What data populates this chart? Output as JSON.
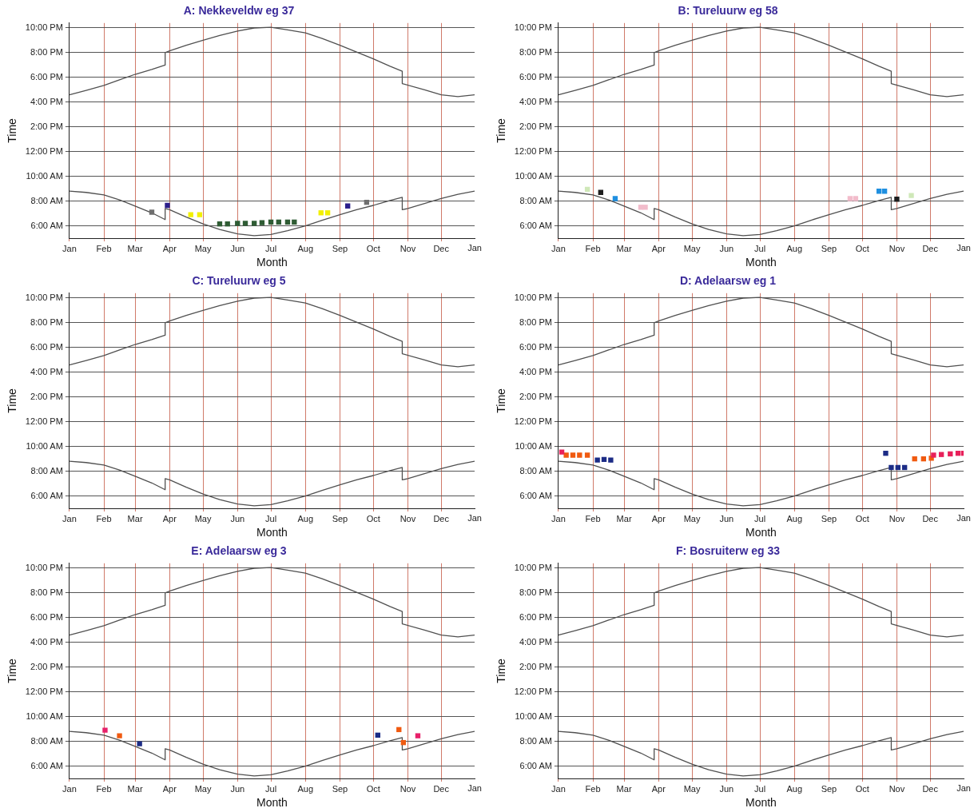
{
  "chart_data": [
    {
      "type": "line",
      "annotations": [
        "Jan"
      ],
      "title": "A: Nekkeveldw eg 37",
      "xlabel": "Month",
      "ylabel": "Time",
      "grid": true,
      "legend": false,
      "xlim": [
        "--01-01",
        "--12-31"
      ],
      "xticks": [
        {
          "value": "--01-01",
          "label": "Jan"
        },
        {
          "value": "--02-01",
          "label": "Feb"
        },
        {
          "value": "--03-01",
          "label": "Mar"
        },
        {
          "value": "--04-01",
          "label": "Apr"
        },
        {
          "value": "--05-01",
          "label": "May"
        },
        {
          "value": "--06-01",
          "label": "Jun"
        },
        {
          "value": "--07-01",
          "label": "Jul"
        },
        {
          "value": "--08-01",
          "label": "Aug"
        },
        {
          "value": "--09-01",
          "label": "Sep"
        },
        {
          "value": "--10-01",
          "label": "Oct"
        },
        {
          "value": "--11-01",
          "label": "Nov"
        },
        {
          "value": "--12-01",
          "label": "Dec"
        }
      ],
      "ylim": [
        5,
        22.4
      ],
      "yticks": [
        {
          "value": 6,
          "label": "6:00 AM"
        },
        {
          "value": 8,
          "label": "8:00 AM"
        },
        {
          "value": 10,
          "label": "10:00 AM"
        },
        {
          "value": 12,
          "label": "12:00 PM"
        },
        {
          "value": 14,
          "label": "2:00 PM"
        },
        {
          "value": 16,
          "label": "4:00 PM"
        },
        {
          "value": 18,
          "label": "6:00 PM"
        },
        {
          "value": 20,
          "label": "8:00 PM"
        },
        {
          "value": 22,
          "label": "10:00 PM"
        }
      ],
      "series": [
        {
          "type": "line",
          "marker": "none",
          "color": "#505050",
          "x": [
            "--01-01",
            "--01-16",
            "--02-01",
            "--02-15",
            "--03-01",
            "--03-16",
            "--03-28",
            "--03-28",
            "--04-01",
            "--04-16",
            "--05-01",
            "--05-16",
            "--06-01",
            "--06-16",
            "--07-01",
            "--07-16",
            "--08-01",
            "--08-16",
            "--09-01",
            "--09-16",
            "--10-01",
            "--10-16",
            "--10-27",
            "--10-27",
            "--11-16",
            "--12-01",
            "--12-16",
            "--12-31"
          ],
          "values": [
            16.6,
            16.95,
            17.35,
            17.8,
            18.25,
            18.65,
            19.0,
            20.0,
            20.15,
            20.6,
            21.0,
            21.4,
            21.75,
            22.0,
            22.05,
            21.85,
            21.6,
            21.15,
            20.6,
            20.05,
            19.5,
            18.9,
            18.5,
            17.5,
            17.0,
            16.6,
            16.45,
            16.6
          ]
        },
        {
          "type": "line",
          "marker": "none",
          "color": "#505050",
          "x": [
            "--01-01",
            "--01-16",
            "--02-01",
            "--02-15",
            "--03-01",
            "--03-16",
            "--03-28",
            "--03-28",
            "--04-01",
            "--04-16",
            "--05-01",
            "--05-16",
            "--06-01",
            "--06-16",
            "--07-01",
            "--07-16",
            "--08-01",
            "--08-16",
            "--09-01",
            "--09-16",
            "--10-01",
            "--10-16",
            "--10-27",
            "--10-27",
            "--11-01",
            "--11-16",
            "--12-01",
            "--12-16",
            "--12-31"
          ],
          "values": [
            8.8,
            8.7,
            8.5,
            8.1,
            7.6,
            7.05,
            6.5,
            7.4,
            7.3,
            6.7,
            6.15,
            5.7,
            5.35,
            5.2,
            5.3,
            5.6,
            6.0,
            6.45,
            6.9,
            7.3,
            7.65,
            8.05,
            8.3,
            7.3,
            7.4,
            7.8,
            8.2,
            8.55,
            8.8
          ]
        },
        {
          "type": "scatter",
          "marker": "square",
          "color": "#6e6e6e",
          "x": [
            "--03-16",
            "--09-25"
          ],
          "values": [
            7.1,
            7.9
          ]
        },
        {
          "type": "scatter",
          "marker": "square",
          "color": "#2b1f8c",
          "x": [
            "--03-30",
            "--09-08"
          ],
          "values": [
            7.65,
            7.6
          ]
        },
        {
          "type": "scatter",
          "marker": "square",
          "color": "#f2f000",
          "x": [
            "--04-20",
            "--04-28",
            "--08-15",
            "--08-21"
          ],
          "values": [
            6.9,
            6.9,
            7.05,
            7.05
          ]
        },
        {
          "type": "scatter",
          "marker": "square",
          "color": "#2f5c34",
          "x": [
            "--05-16",
            "--05-23",
            "--06-01",
            "--06-08",
            "--06-16",
            "--06-23",
            "--07-01",
            "--07-08",
            "--07-16",
            "--07-22"
          ],
          "values": [
            6.15,
            6.15,
            6.2,
            6.2,
            6.2,
            6.25,
            6.3,
            6.3,
            6.3,
            6.3
          ]
        }
      ]
    },
    {
      "type": "line",
      "annotations": [
        "Jan"
      ],
      "title": "B: Tureluurw eg 58",
      "xlabel": "Month",
      "ylabel": "Time",
      "grid": true,
      "legend": false,
      "xlim": [
        "--01-01",
        "--12-31"
      ],
      "xticks": [
        {
          "value": "--01-01",
          "label": "Jan"
        },
        {
          "value": "--02-01",
          "label": "Feb"
        },
        {
          "value": "--03-01",
          "label": "Mar"
        },
        {
          "value": "--04-01",
          "label": "Apr"
        },
        {
          "value": "--05-01",
          "label": "May"
        },
        {
          "value": "--06-01",
          "label": "Jun"
        },
        {
          "value": "--07-01",
          "label": "Jul"
        },
        {
          "value": "--08-01",
          "label": "Aug"
        },
        {
          "value": "--09-01",
          "label": "Sep"
        },
        {
          "value": "--10-01",
          "label": "Oct"
        },
        {
          "value": "--11-01",
          "label": "Nov"
        },
        {
          "value": "--12-01",
          "label": "Dec"
        }
      ],
      "ylim": [
        5,
        22.4
      ],
      "yticks": [
        {
          "value": 6,
          "label": "6:00 AM"
        },
        {
          "value": 8,
          "label": "8:00 AM"
        },
        {
          "value": 10,
          "label": "10:00 AM"
        },
        {
          "value": 12,
          "label": "12:00 PM"
        },
        {
          "value": 14,
          "label": "2:00 PM"
        },
        {
          "value": 16,
          "label": "4:00 PM"
        },
        {
          "value": 18,
          "label": "6:00 PM"
        },
        {
          "value": 20,
          "label": "8:00 PM"
        },
        {
          "value": 22,
          "label": "10:00 PM"
        }
      ],
      "series": [
        {
          "type": "line",
          "marker": "none",
          "color": "#505050",
          "x": [
            "--01-01",
            "--01-16",
            "--02-01",
            "--02-15",
            "--03-01",
            "--03-16",
            "--03-28",
            "--03-28",
            "--04-01",
            "--04-16",
            "--05-01",
            "--05-16",
            "--06-01",
            "--06-16",
            "--07-01",
            "--07-16",
            "--08-01",
            "--08-16",
            "--09-01",
            "--09-16",
            "--10-01",
            "--10-16",
            "--10-27",
            "--10-27",
            "--11-16",
            "--12-01",
            "--12-16",
            "--12-31"
          ],
          "values": [
            16.6,
            16.95,
            17.35,
            17.8,
            18.25,
            18.65,
            19.0,
            20.0,
            20.15,
            20.6,
            21.0,
            21.4,
            21.75,
            22.0,
            22.05,
            21.85,
            21.6,
            21.15,
            20.6,
            20.05,
            19.5,
            18.9,
            18.5,
            17.5,
            17.0,
            16.6,
            16.45,
            16.6
          ]
        },
        {
          "type": "line",
          "marker": "none",
          "color": "#505050",
          "x": [
            "--01-01",
            "--01-16",
            "--02-01",
            "--02-15",
            "--03-01",
            "--03-16",
            "--03-28",
            "--03-28",
            "--04-01",
            "--04-16",
            "--05-01",
            "--05-16",
            "--06-01",
            "--06-16",
            "--07-01",
            "--07-16",
            "--08-01",
            "--08-16",
            "--09-01",
            "--09-16",
            "--10-01",
            "--10-16",
            "--10-27",
            "--10-27",
            "--11-01",
            "--11-16",
            "--12-01",
            "--12-16",
            "--12-31"
          ],
          "values": [
            8.8,
            8.7,
            8.5,
            8.1,
            7.6,
            7.05,
            6.5,
            7.4,
            7.3,
            6.7,
            6.15,
            5.7,
            5.35,
            5.2,
            5.3,
            5.6,
            6.0,
            6.45,
            6.9,
            7.3,
            7.65,
            8.05,
            8.3,
            7.3,
            7.4,
            7.8,
            8.2,
            8.55,
            8.8
          ]
        },
        {
          "type": "scatter",
          "marker": "square",
          "color": "#cfe8b8",
          "x": [
            "--01-27",
            "--11-14"
          ],
          "values": [
            8.95,
            8.45
          ]
        },
        {
          "type": "scatter",
          "marker": "square",
          "color": "#1e1e1e",
          "x": [
            "--02-08",
            "--11-01"
          ],
          "values": [
            8.7,
            8.15
          ]
        },
        {
          "type": "scatter",
          "marker": "square",
          "color": "#1f8fe0",
          "x": [
            "--02-21",
            "--10-16",
            "--10-21"
          ],
          "values": [
            8.2,
            8.8,
            8.8
          ]
        },
        {
          "type": "scatter",
          "marker": "square",
          "color": "#f2bccb",
          "x": [
            "--03-16",
            "--03-20",
            "--09-20",
            "--09-25"
          ],
          "values": [
            7.5,
            7.5,
            8.2,
            8.2
          ]
        }
      ]
    },
    {
      "type": "line",
      "annotations": [
        "Jan"
      ],
      "title": "C: Tureluurw eg 5",
      "xlabel": "Month",
      "ylabel": "Time",
      "grid": true,
      "legend": false,
      "xlim": [
        "--01-01",
        "--12-31"
      ],
      "xticks": [
        {
          "value": "--01-01",
          "label": "Jan"
        },
        {
          "value": "--02-01",
          "label": "Feb"
        },
        {
          "value": "--03-01",
          "label": "Mar"
        },
        {
          "value": "--04-01",
          "label": "Apr"
        },
        {
          "value": "--05-01",
          "label": "May"
        },
        {
          "value": "--06-01",
          "label": "Jun"
        },
        {
          "value": "--07-01",
          "label": "Jul"
        },
        {
          "value": "--08-01",
          "label": "Aug"
        },
        {
          "value": "--09-01",
          "label": "Sep"
        },
        {
          "value": "--10-01",
          "label": "Oct"
        },
        {
          "value": "--11-01",
          "label": "Nov"
        },
        {
          "value": "--12-01",
          "label": "Dec"
        }
      ],
      "ylim": [
        5,
        22.4
      ],
      "yticks": [
        {
          "value": 6,
          "label": "6:00 AM"
        },
        {
          "value": 8,
          "label": "8:00 AM"
        },
        {
          "value": 10,
          "label": "10:00 AM"
        },
        {
          "value": 12,
          "label": "12:00 PM"
        },
        {
          "value": 14,
          "label": "2:00 PM"
        },
        {
          "value": 16,
          "label": "4:00 PM"
        },
        {
          "value": 18,
          "label": "6:00 PM"
        },
        {
          "value": 20,
          "label": "8:00 PM"
        },
        {
          "value": 22,
          "label": "10:00 PM"
        }
      ],
      "series": [
        {
          "type": "line",
          "marker": "none",
          "color": "#505050",
          "x": [
            "--01-01",
            "--01-16",
            "--02-01",
            "--02-15",
            "--03-01",
            "--03-16",
            "--03-28",
            "--03-28",
            "--04-01",
            "--04-16",
            "--05-01",
            "--05-16",
            "--06-01",
            "--06-16",
            "--07-01",
            "--07-16",
            "--08-01",
            "--08-16",
            "--09-01",
            "--09-16",
            "--10-01",
            "--10-16",
            "--10-27",
            "--10-27",
            "--11-16",
            "--12-01",
            "--12-16",
            "--12-31"
          ],
          "values": [
            16.6,
            16.95,
            17.35,
            17.8,
            18.25,
            18.65,
            19.0,
            20.0,
            20.15,
            20.6,
            21.0,
            21.4,
            21.75,
            22.0,
            22.05,
            21.85,
            21.6,
            21.15,
            20.6,
            20.05,
            19.5,
            18.9,
            18.5,
            17.5,
            17.0,
            16.6,
            16.45,
            16.6
          ]
        },
        {
          "type": "line",
          "marker": "none",
          "color": "#505050",
          "x": [
            "--01-01",
            "--01-16",
            "--02-01",
            "--02-15",
            "--03-01",
            "--03-16",
            "--03-28",
            "--03-28",
            "--04-01",
            "--04-16",
            "--05-01",
            "--05-16",
            "--06-01",
            "--06-16",
            "--07-01",
            "--07-16",
            "--08-01",
            "--08-16",
            "--09-01",
            "--09-16",
            "--10-01",
            "--10-16",
            "--10-27",
            "--10-27",
            "--11-01",
            "--11-16",
            "--12-01",
            "--12-16",
            "--12-31"
          ],
          "values": [
            8.8,
            8.7,
            8.5,
            8.1,
            7.6,
            7.05,
            6.5,
            7.4,
            7.3,
            6.7,
            6.15,
            5.7,
            5.35,
            5.2,
            5.3,
            5.6,
            6.0,
            6.45,
            6.9,
            7.3,
            7.65,
            8.05,
            8.3,
            7.3,
            7.4,
            7.8,
            8.2,
            8.55,
            8.8
          ]
        }
      ]
    },
    {
      "type": "line",
      "annotations": [
        "Jan"
      ],
      "title": "D: Adelaarsw eg 1",
      "xlabel": "Month",
      "ylabel": "Time",
      "grid": true,
      "legend": false,
      "xlim": [
        "--01-01",
        "--12-31"
      ],
      "xticks": [
        {
          "value": "--01-01",
          "label": "Jan"
        },
        {
          "value": "--02-01",
          "label": "Feb"
        },
        {
          "value": "--03-01",
          "label": "Mar"
        },
        {
          "value": "--04-01",
          "label": "Apr"
        },
        {
          "value": "--05-01",
          "label": "May"
        },
        {
          "value": "--06-01",
          "label": "Jun"
        },
        {
          "value": "--07-01",
          "label": "Jul"
        },
        {
          "value": "--08-01",
          "label": "Aug"
        },
        {
          "value": "--09-01",
          "label": "Sep"
        },
        {
          "value": "--10-01",
          "label": "Oct"
        },
        {
          "value": "--11-01",
          "label": "Nov"
        },
        {
          "value": "--12-01",
          "label": "Dec"
        }
      ],
      "ylim": [
        5,
        22.4
      ],
      "yticks": [
        {
          "value": 6,
          "label": "6:00 AM"
        },
        {
          "value": 8,
          "label": "8:00 AM"
        },
        {
          "value": 10,
          "label": "10:00 AM"
        },
        {
          "value": 12,
          "label": "12:00 PM"
        },
        {
          "value": 14,
          "label": "2:00 PM"
        },
        {
          "value": 16,
          "label": "4:00 PM"
        },
        {
          "value": 18,
          "label": "6:00 PM"
        },
        {
          "value": 20,
          "label": "8:00 PM"
        },
        {
          "value": 22,
          "label": "10:00 PM"
        }
      ],
      "series": [
        {
          "type": "line",
          "marker": "none",
          "color": "#505050",
          "x": [
            "--01-01",
            "--01-16",
            "--02-01",
            "--02-15",
            "--03-01",
            "--03-16",
            "--03-28",
            "--03-28",
            "--04-01",
            "--04-16",
            "--05-01",
            "--05-16",
            "--06-01",
            "--06-16",
            "--07-01",
            "--07-16",
            "--08-01",
            "--08-16",
            "--09-01",
            "--09-16",
            "--10-01",
            "--10-16",
            "--10-27",
            "--10-27",
            "--11-16",
            "--12-01",
            "--12-16",
            "--12-31"
          ],
          "values": [
            16.6,
            16.95,
            17.35,
            17.8,
            18.25,
            18.65,
            19.0,
            20.0,
            20.15,
            20.6,
            21.0,
            21.4,
            21.75,
            22.0,
            22.05,
            21.85,
            21.6,
            21.15,
            20.6,
            20.05,
            19.5,
            18.9,
            18.5,
            17.5,
            17.0,
            16.6,
            16.45,
            16.6
          ]
        },
        {
          "type": "line",
          "marker": "none",
          "color": "#505050",
          "x": [
            "--01-01",
            "--01-16",
            "--02-01",
            "--02-15",
            "--03-01",
            "--03-16",
            "--03-28",
            "--03-28",
            "--04-01",
            "--04-16",
            "--05-01",
            "--05-16",
            "--06-01",
            "--06-16",
            "--07-01",
            "--07-16",
            "--08-01",
            "--08-16",
            "--09-01",
            "--09-16",
            "--10-01",
            "--10-16",
            "--10-27",
            "--10-27",
            "--11-01",
            "--11-16",
            "--12-01",
            "--12-16",
            "--12-31"
          ],
          "values": [
            8.8,
            8.7,
            8.5,
            8.1,
            7.6,
            7.05,
            6.5,
            7.4,
            7.3,
            6.7,
            6.15,
            5.7,
            5.35,
            5.2,
            5.3,
            5.6,
            6.0,
            6.45,
            6.9,
            7.3,
            7.65,
            8.05,
            8.3,
            7.3,
            7.4,
            7.8,
            8.2,
            8.55,
            8.8
          ]
        },
        {
          "type": "scatter",
          "marker": "square",
          "color": "#e8205a",
          "x": [
            "--01-04",
            "--12-04",
            "--12-11",
            "--12-19",
            "--12-26",
            "--12-31"
          ],
          "values": [
            9.55,
            9.3,
            9.35,
            9.4,
            9.45,
            9.45
          ]
        },
        {
          "type": "scatter",
          "marker": "square",
          "color": "#f05a10",
          "x": [
            "--01-08",
            "--01-14",
            "--01-20",
            "--01-27",
            "--11-17",
            "--11-25",
            "--12-02"
          ],
          "values": [
            9.3,
            9.3,
            9.3,
            9.3,
            9.0,
            9.0,
            9.05
          ]
        },
        {
          "type": "scatter",
          "marker": "square",
          "color": "#1c2c86",
          "x": [
            "--02-05",
            "--02-11",
            "--02-17",
            "--10-22",
            "--10-27",
            "--11-02",
            "--11-08"
          ],
          "values": [
            8.9,
            8.95,
            8.9,
            9.45,
            8.3,
            8.3,
            8.3
          ]
        }
      ]
    },
    {
      "type": "line",
      "annotations": [
        "Jan"
      ],
      "title": "E: Adelaarsw eg 3",
      "xlabel": "Month",
      "ylabel": "Time",
      "grid": true,
      "legend": false,
      "xlim": [
        "--01-01",
        "--12-31"
      ],
      "xticks": [
        {
          "value": "--01-01",
          "label": "Jan"
        },
        {
          "value": "--02-01",
          "label": "Feb"
        },
        {
          "value": "--03-01",
          "label": "Mar"
        },
        {
          "value": "--04-01",
          "label": "Apr"
        },
        {
          "value": "--05-01",
          "label": "May"
        },
        {
          "value": "--06-01",
          "label": "Jun"
        },
        {
          "value": "--07-01",
          "label": "Jul"
        },
        {
          "value": "--08-01",
          "label": "Aug"
        },
        {
          "value": "--09-01",
          "label": "Sep"
        },
        {
          "value": "--10-01",
          "label": "Oct"
        },
        {
          "value": "--11-01",
          "label": "Nov"
        },
        {
          "value": "--12-01",
          "label": "Dec"
        }
      ],
      "ylim": [
        5,
        22.4
      ],
      "yticks": [
        {
          "value": 6,
          "label": "6:00 AM"
        },
        {
          "value": 8,
          "label": "8:00 AM"
        },
        {
          "value": 10,
          "label": "10:00 AM"
        },
        {
          "value": 12,
          "label": "12:00 PM"
        },
        {
          "value": 14,
          "label": "2:00 PM"
        },
        {
          "value": 16,
          "label": "4:00 PM"
        },
        {
          "value": 18,
          "label": "6:00 PM"
        },
        {
          "value": 20,
          "label": "8:00 PM"
        },
        {
          "value": 22,
          "label": "10:00 PM"
        }
      ],
      "series": [
        {
          "type": "line",
          "marker": "none",
          "color": "#505050",
          "x": [
            "--01-01",
            "--01-16",
            "--02-01",
            "--02-15",
            "--03-01",
            "--03-16",
            "--03-28",
            "--03-28",
            "--04-01",
            "--04-16",
            "--05-01",
            "--05-16",
            "--06-01",
            "--06-16",
            "--07-01",
            "--07-16",
            "--08-01",
            "--08-16",
            "--09-01",
            "--09-16",
            "--10-01",
            "--10-16",
            "--10-27",
            "--10-27",
            "--11-16",
            "--12-01",
            "--12-16",
            "--12-31"
          ],
          "values": [
            16.6,
            16.95,
            17.35,
            17.8,
            18.25,
            18.65,
            19.0,
            20.0,
            20.15,
            20.6,
            21.0,
            21.4,
            21.75,
            22.0,
            22.05,
            21.85,
            21.6,
            21.15,
            20.6,
            20.05,
            19.5,
            18.9,
            18.5,
            17.5,
            17.0,
            16.6,
            16.45,
            16.6
          ]
        },
        {
          "type": "line",
          "marker": "none",
          "color": "#505050",
          "x": [
            "--01-01",
            "--01-16",
            "--02-01",
            "--02-15",
            "--03-01",
            "--03-16",
            "--03-28",
            "--03-28",
            "--04-01",
            "--04-16",
            "--05-01",
            "--05-16",
            "--06-01",
            "--06-16",
            "--07-01",
            "--07-16",
            "--08-01",
            "--08-16",
            "--09-01",
            "--09-16",
            "--10-01",
            "--10-16",
            "--10-27",
            "--10-27",
            "--11-01",
            "--11-16",
            "--12-01",
            "--12-16",
            "--12-31"
          ],
          "values": [
            8.8,
            8.7,
            8.5,
            8.1,
            7.6,
            7.05,
            6.5,
            7.4,
            7.3,
            6.7,
            6.15,
            5.7,
            5.35,
            5.2,
            5.3,
            5.6,
            6.0,
            6.45,
            6.9,
            7.3,
            7.65,
            8.05,
            8.3,
            7.3,
            7.4,
            7.8,
            8.2,
            8.55,
            8.8
          ]
        },
        {
          "type": "scatter",
          "marker": "square",
          "color": "#e8206a",
          "x": [
            "--02-02",
            "--11-10"
          ],
          "values": [
            8.9,
            8.45
          ]
        },
        {
          "type": "scatter",
          "marker": "square",
          "color": "#f05a10",
          "x": [
            "--02-15",
            "--10-24",
            "--10-28"
          ],
          "values": [
            8.45,
            8.95,
            7.9
          ]
        },
        {
          "type": "scatter",
          "marker": "square",
          "color": "#1c2c86",
          "x": [
            "--03-05",
            "--10-05"
          ],
          "values": [
            7.8,
            8.5
          ]
        }
      ]
    },
    {
      "type": "line",
      "annotations": [
        "Jan"
      ],
      "title": "F: Bosruiterw eg 33",
      "xlabel": "Month",
      "ylabel": "Time",
      "grid": true,
      "legend": false,
      "xlim": [
        "--01-01",
        "--12-31"
      ],
      "xticks": [
        {
          "value": "--01-01",
          "label": "Jan"
        },
        {
          "value": "--02-01",
          "label": "Feb"
        },
        {
          "value": "--03-01",
          "label": "Mar"
        },
        {
          "value": "--04-01",
          "label": "Apr"
        },
        {
          "value": "--05-01",
          "label": "May"
        },
        {
          "value": "--06-01",
          "label": "Jun"
        },
        {
          "value": "--07-01",
          "label": "Jul"
        },
        {
          "value": "--08-01",
          "label": "Aug"
        },
        {
          "value": "--09-01",
          "label": "Sep"
        },
        {
          "value": "--10-01",
          "label": "Oct"
        },
        {
          "value": "--11-01",
          "label": "Nov"
        },
        {
          "value": "--12-01",
          "label": "Dec"
        }
      ],
      "ylim": [
        5,
        22.4
      ],
      "yticks": [
        {
          "value": 6,
          "label": "6:00 AM"
        },
        {
          "value": 8,
          "label": "8:00 AM"
        },
        {
          "value": 10,
          "label": "10:00 AM"
        },
        {
          "value": 12,
          "label": "12:00 PM"
        },
        {
          "value": 14,
          "label": "2:00 PM"
        },
        {
          "value": 16,
          "label": "4:00 PM"
        },
        {
          "value": 18,
          "label": "6:00 PM"
        },
        {
          "value": 20,
          "label": "8:00 PM"
        },
        {
          "value": 22,
          "label": "10:00 PM"
        }
      ],
      "series": [
        {
          "type": "line",
          "marker": "none",
          "color": "#505050",
          "x": [
            "--01-01",
            "--01-16",
            "--02-01",
            "--02-15",
            "--03-01",
            "--03-16",
            "--03-28",
            "--03-28",
            "--04-01",
            "--04-16",
            "--05-01",
            "--05-16",
            "--06-01",
            "--06-16",
            "--07-01",
            "--07-16",
            "--08-01",
            "--08-16",
            "--09-01",
            "--09-16",
            "--10-01",
            "--10-16",
            "--10-27",
            "--10-27",
            "--11-16",
            "--12-01",
            "--12-16",
            "--12-31"
          ],
          "values": [
            16.6,
            16.95,
            17.35,
            17.8,
            18.25,
            18.65,
            19.0,
            20.0,
            20.15,
            20.6,
            21.0,
            21.4,
            21.75,
            22.0,
            22.05,
            21.85,
            21.6,
            21.15,
            20.6,
            20.05,
            19.5,
            18.9,
            18.5,
            17.5,
            17.0,
            16.6,
            16.45,
            16.6
          ]
        },
        {
          "type": "line",
          "marker": "none",
          "color": "#505050",
          "x": [
            "--01-01",
            "--01-16",
            "--02-01",
            "--02-15",
            "--03-01",
            "--03-16",
            "--03-28",
            "--03-28",
            "--04-01",
            "--04-16",
            "--05-01",
            "--05-16",
            "--06-01",
            "--06-16",
            "--07-01",
            "--07-16",
            "--08-01",
            "--08-16",
            "--09-01",
            "--09-16",
            "--10-01",
            "--10-16",
            "--10-27",
            "--10-27",
            "--11-01",
            "--11-16",
            "--12-01",
            "--12-16",
            "--12-31"
          ],
          "values": [
            8.8,
            8.7,
            8.5,
            8.1,
            7.6,
            7.05,
            6.5,
            7.4,
            7.3,
            6.7,
            6.15,
            5.7,
            5.35,
            5.2,
            5.3,
            5.6,
            6.0,
            6.45,
            6.9,
            7.3,
            7.65,
            8.05,
            8.3,
            7.3,
            7.4,
            7.8,
            8.2,
            8.55,
            8.8
          ]
        }
      ]
    }
  ]
}
